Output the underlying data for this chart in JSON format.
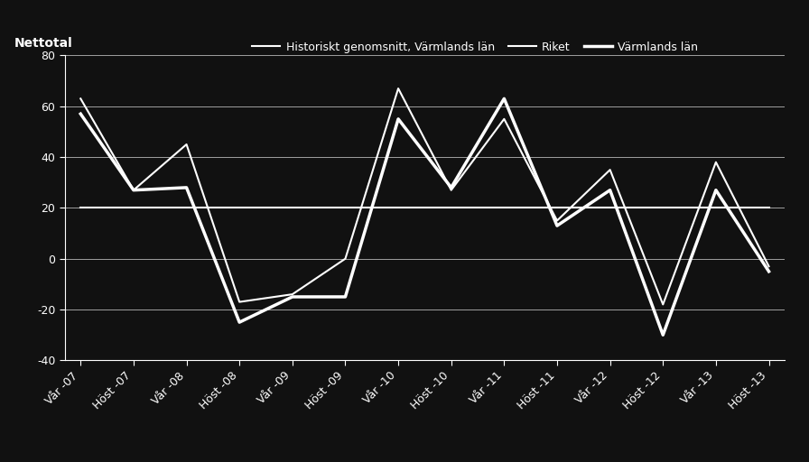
{
  "x_labels": [
    "Vår -07",
    "Höst -07",
    "Vår -08",
    "Höst -08",
    "Vår -09",
    "Höst -09",
    "Vår -10",
    "Höst -10",
    "Vår -11",
    "Höst -11",
    "Vår -12",
    "Höst -12",
    "Vår -13",
    "Höst -13"
  ],
  "varmland": [
    57,
    27,
    28,
    -25,
    -15,
    -15,
    55,
    28,
    63,
    13,
    27,
    -30,
    27,
    -5
  ],
  "historiskt": [
    20,
    20,
    20,
    20,
    20,
    20,
    20,
    20,
    20,
    20,
    20,
    20,
    20,
    20
  ],
  "riket": [
    63,
    27,
    45,
    -17,
    -14,
    0,
    67,
    27,
    55,
    15,
    35,
    -18,
    38,
    -3
  ],
  "ylabel": "Nettotal",
  "ylim": [
    -40,
    80
  ],
  "yticks": [
    -40,
    -20,
    0,
    20,
    40,
    60,
    80
  ],
  "background_color": "#111111",
  "text_color": "#ffffff",
  "grid_color": "#ffffff",
  "line_color_varmland": "#ffffff",
  "line_color_historiskt": "#ffffff",
  "line_color_riket": "#ffffff",
  "legend_varmland": "Värmlands län",
  "legend_historiskt": "Historiskt genomsnitt, Värmlands län",
  "legend_riket": "Riket",
  "lw_varmland": 2.5,
  "lw_historiskt": 1.5,
  "lw_riket": 1.5
}
